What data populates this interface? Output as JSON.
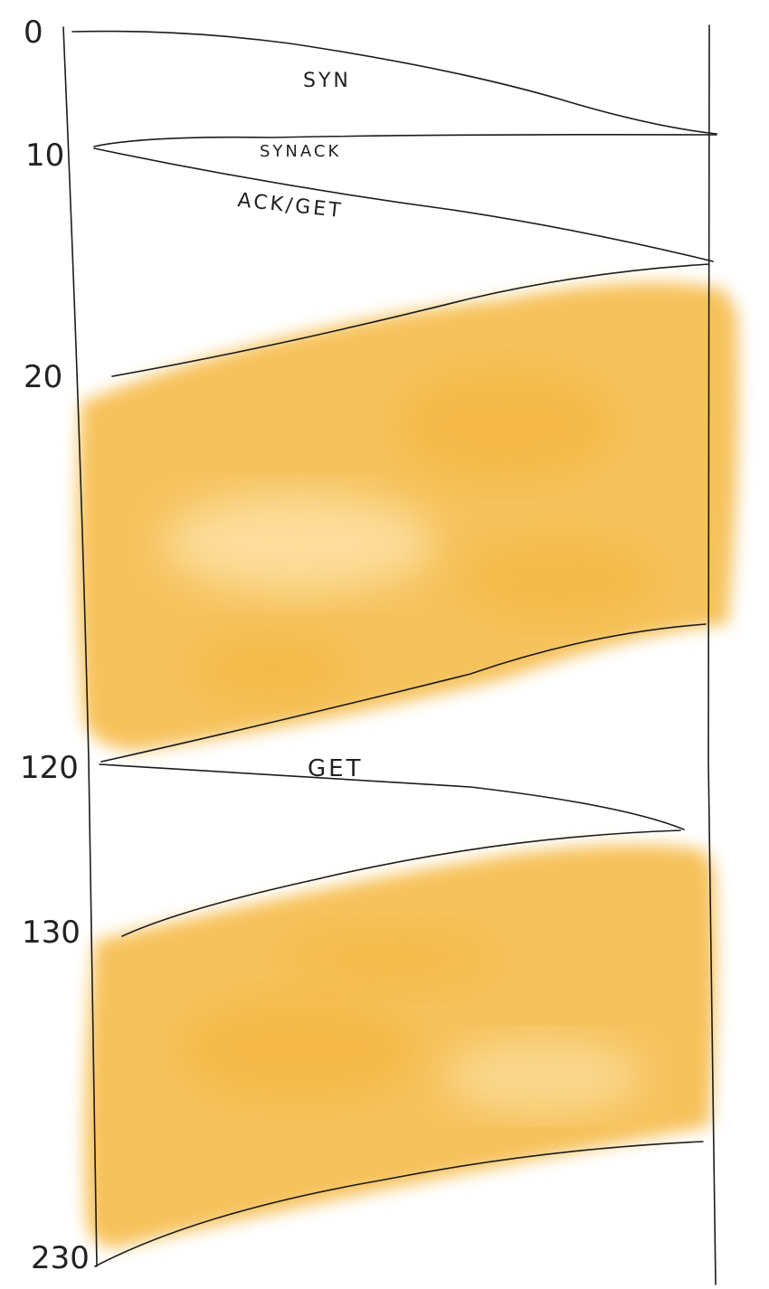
{
  "diagram": {
    "type": "sequence-timing",
    "colors": {
      "ink": "#1c1c1c",
      "fill_primary": "#f5b83f",
      "fill_light": "#fde2a6"
    },
    "time_labels": [
      "0",
      "10",
      "20",
      "120",
      "130",
      "230"
    ],
    "messages": [
      "SYN",
      "SYNACK",
      "ACK/GET",
      "GET"
    ]
  }
}
